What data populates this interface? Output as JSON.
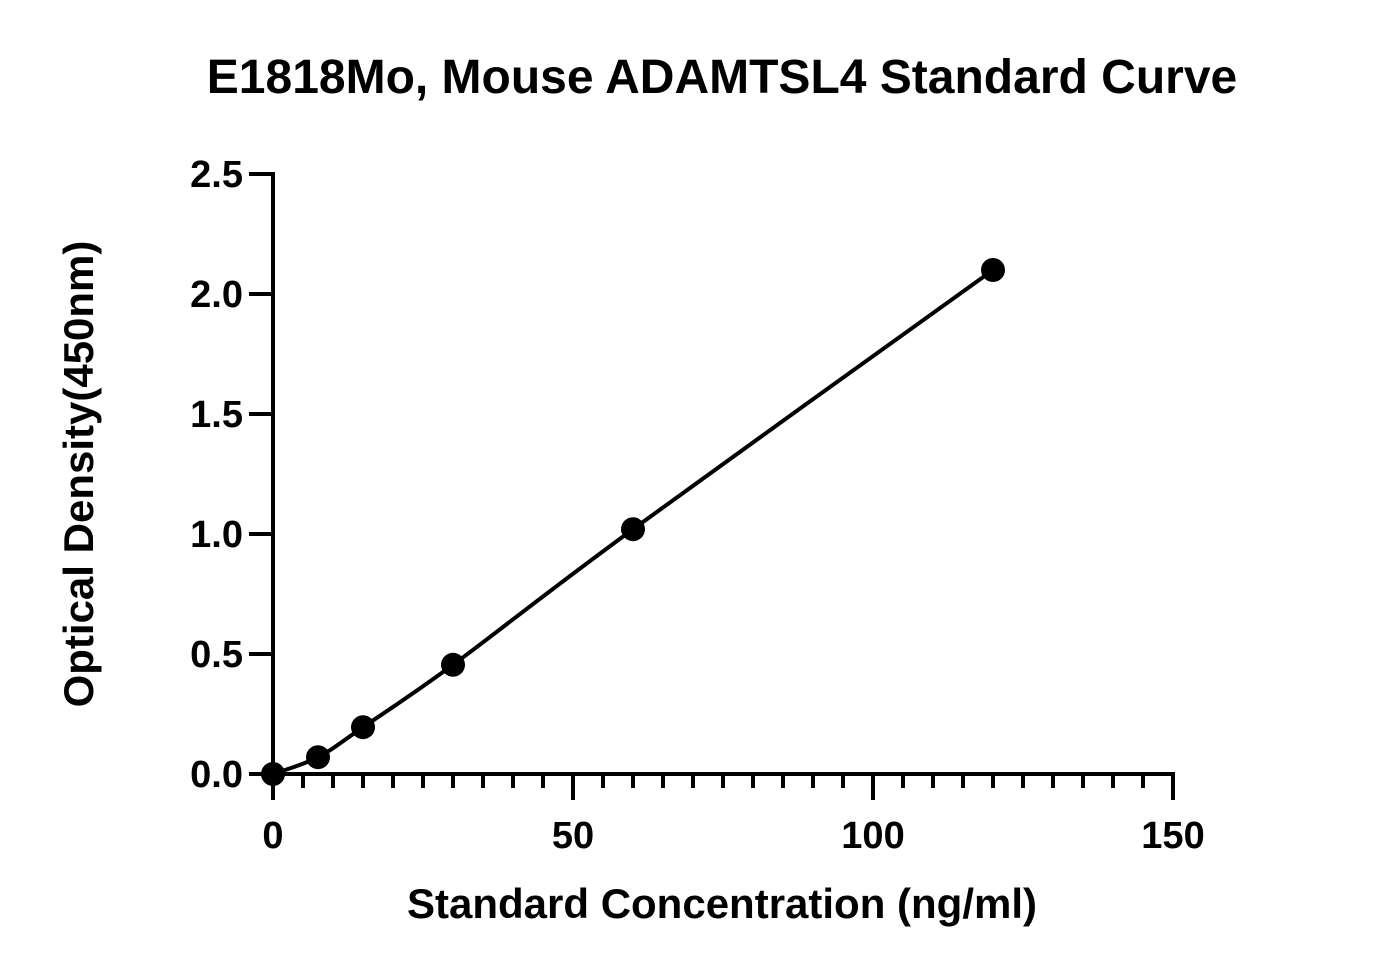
{
  "chart_data": {
    "type": "scatter",
    "title": "E1818Mo, Mouse ADAMTSL4 Standard Curve",
    "xlabel": "Standard Concentration (ng/ml)",
    "ylabel": "Optical Density(450nm)",
    "xlim": [
      0,
      150
    ],
    "ylim": [
      0,
      2.5
    ],
    "x_ticks": [
      0,
      50,
      100,
      150
    ],
    "x_tick_labels": [
      "0",
      "50",
      "100",
      "150"
    ],
    "x_minor_tick_step": 5,
    "y_ticks": [
      0,
      0.5,
      1.0,
      1.5,
      2.0,
      2.5
    ],
    "y_tick_labels": [
      "0.0",
      "0.5",
      "1.0",
      "1.5",
      "2.0",
      "2.5"
    ],
    "grid": false,
    "legend": "none",
    "series": [
      {
        "x": [
          0,
          7.5,
          15,
          30,
          60,
          120
        ],
        "y": [
          0.0,
          0.07,
          0.195,
          0.455,
          1.02,
          2.1
        ],
        "marker": "circle",
        "line": "smooth",
        "color": "#000000"
      }
    ]
  }
}
